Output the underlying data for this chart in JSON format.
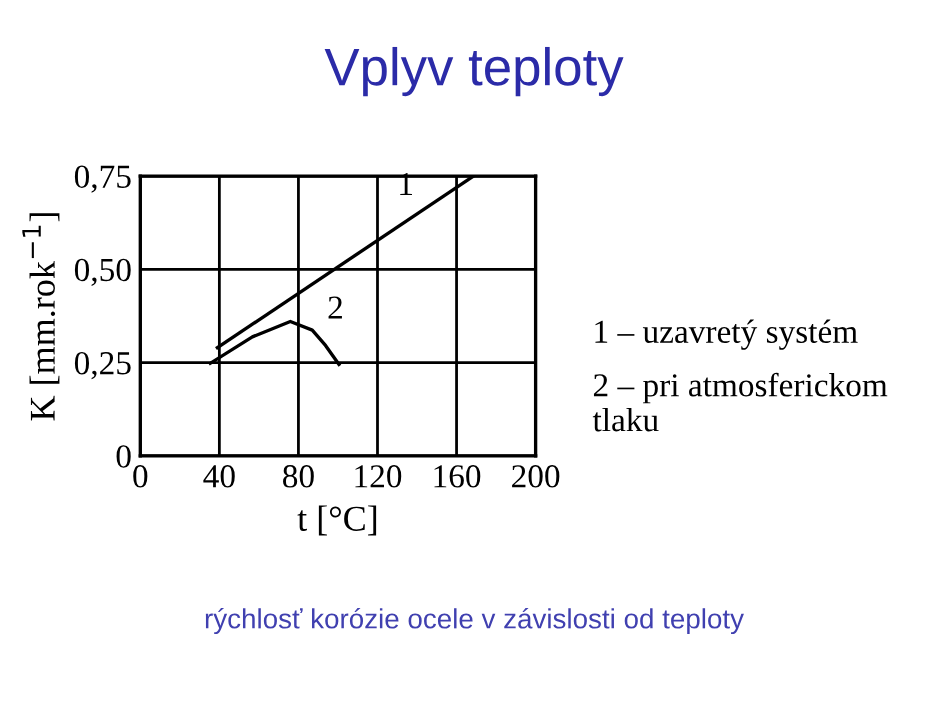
{
  "chart_data": {
    "type": "line",
    "title": "Vplyv teploty",
    "xlabel": "t [°C]",
    "ylabel": "K [mm.rok$^{−1}$]",
    "series": [
      {
        "name": "1",
        "color": "#000000",
        "x": [
          39,
          168.6
        ],
        "values": [
          0.29,
          0.75
        ]
      },
      {
        "name": "2",
        "color": "#000000",
        "x": [
          35.4,
          56.7,
          75.9,
          87,
          93.7,
          100.5
        ],
        "values": [
          0.248,
          0.319,
          0.36,
          0.337,
          0.296,
          0.245
        ]
      }
    ],
    "xlim": [
      0,
      200
    ],
    "ylim": [
      0,
      0.75
    ],
    "xticks": [
      0,
      40,
      80,
      120,
      160,
      200
    ],
    "yticks": [
      0,
      {
        "value": 0.25,
        "label": "0,25"
      },
      {
        "value": 0.5,
        "label": "0,50"
      },
      {
        "value": 0.75,
        "label": "0,75"
      }
    ],
    "grid": true,
    "legend": false,
    "marker": "none",
    "line_style": "solid",
    "annotations": [
      "1 – uzavretý systém",
      "2 – pri atmosferickom tlaku",
      "rýchlosť korózie ocele v závislosti od teploty"
    ]
  }
}
